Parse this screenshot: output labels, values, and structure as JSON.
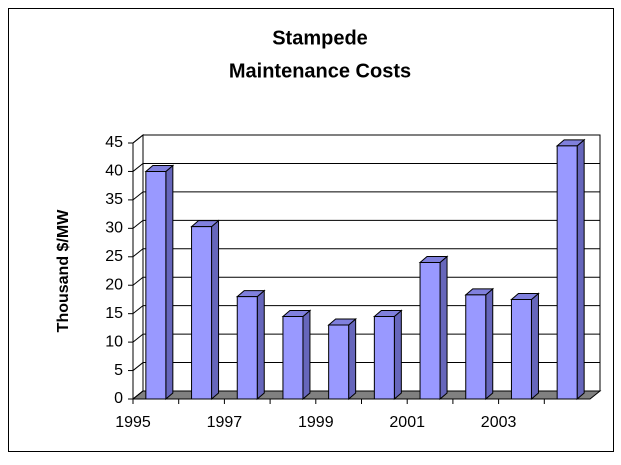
{
  "chart_data": {
    "type": "bar3d",
    "title": [
      "Stampede",
      "Maintenance Costs"
    ],
    "y_label": "Thousand $/MW",
    "categories": [
      "1995",
      null,
      "1997",
      null,
      "1999",
      null,
      "2001",
      null,
      "2003",
      null
    ],
    "values": [
      40,
      30.3,
      18,
      14.5,
      13,
      14.5,
      24,
      18.3,
      17.5,
      44.5
    ],
    "color": "#9999ff",
    "ylim": [
      0,
      45
    ],
    "yticks": [
      0,
      5,
      10,
      15,
      20,
      25,
      30,
      35,
      40,
      45
    ],
    "grid": true
  }
}
